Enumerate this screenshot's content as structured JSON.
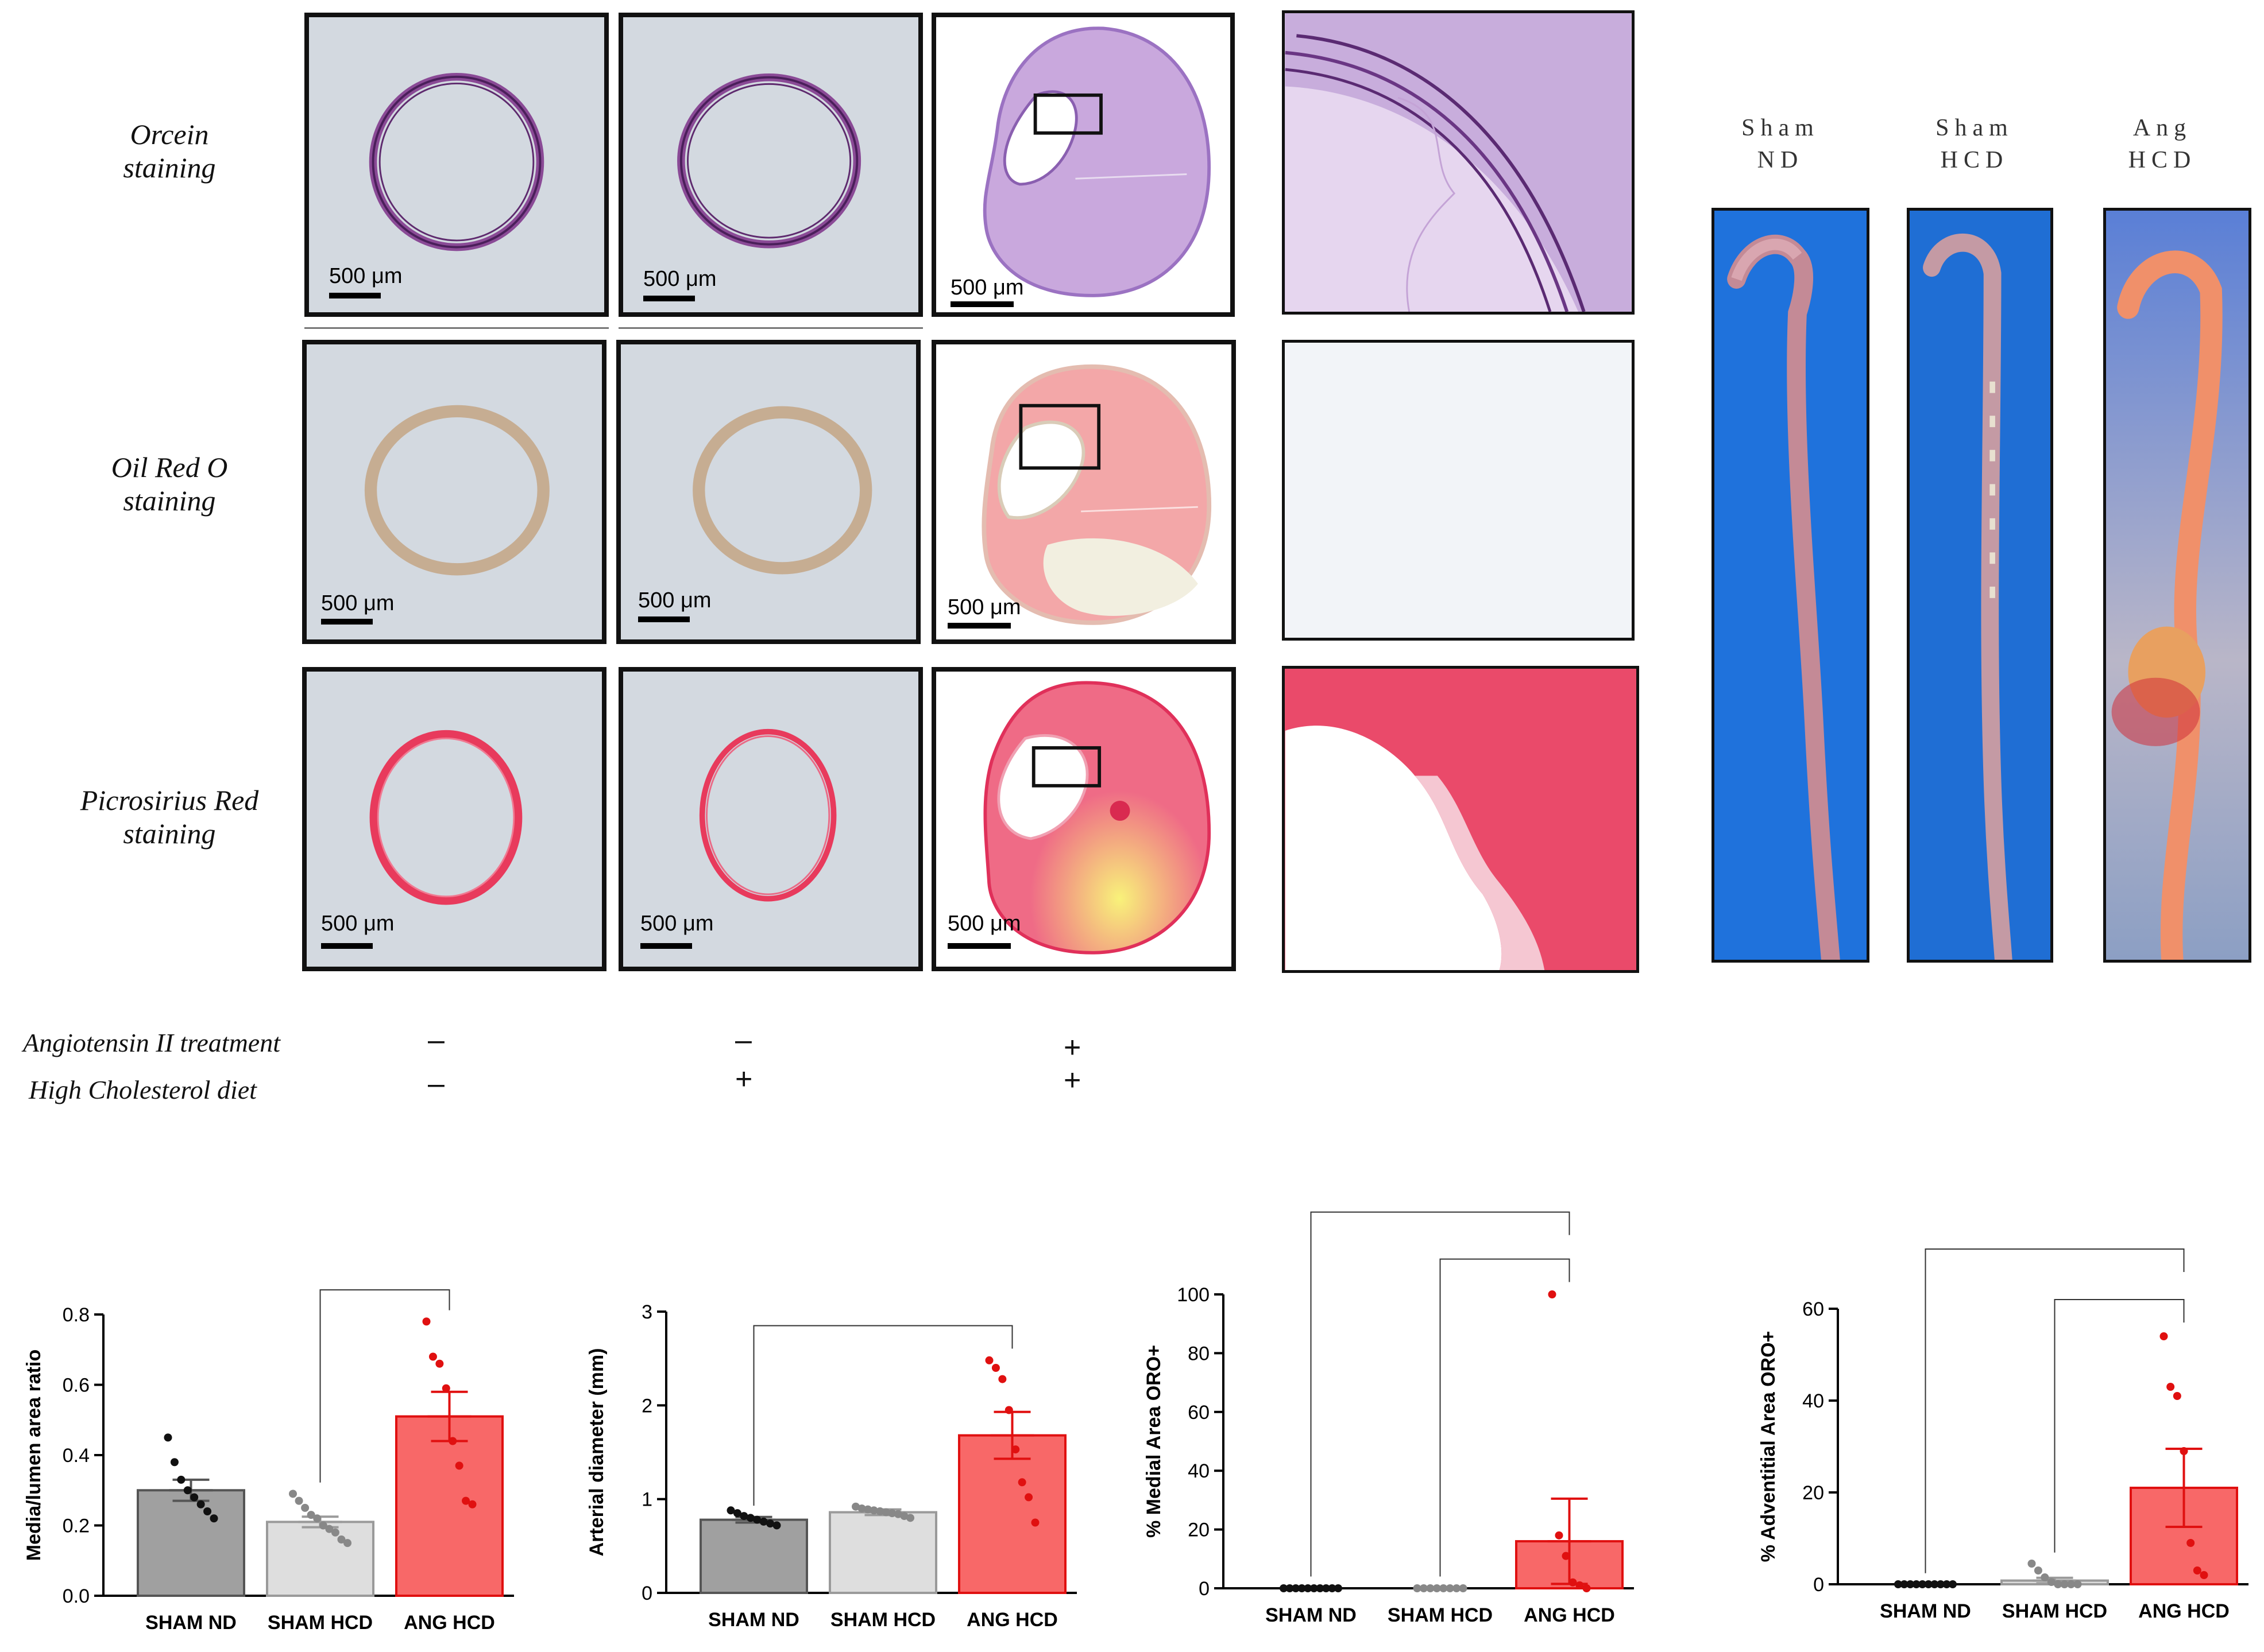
{
  "figure": {
    "row_labels": [
      {
        "line1": "Orcein",
        "line2": "staining"
      },
      {
        "line1": "Oil Red O",
        "line2": "staining"
      },
      {
        "line1": "Picrosirius Red",
        "line2": "staining"
      }
    ],
    "scale_bar": "500 μm",
    "treatments": {
      "angiotensin_label": "Angiotensin II treatment",
      "cholesterol_label": "High Cholesterol diet",
      "angiotensin_signs": [
        "–",
        "–",
        "+"
      ],
      "cholesterol_signs": [
        "–",
        "+",
        "+"
      ]
    },
    "aorta_labels": [
      {
        "line1": "Sham",
        "line2": "ND"
      },
      {
        "line1": "Sham",
        "line2": "HCD"
      },
      {
        "line1": "Ang",
        "line2": "HCD"
      }
    ],
    "colors": {
      "panel_bg": "#d3d9e0",
      "orcein": "#7b3f8a",
      "oil_red": "#c9b39a",
      "picrosirius": "#e8375a",
      "photo_bg": "#1f6fd8",
      "bar_sham_nd": "#a0a0a0",
      "bar_sham_hcd": "#dedede",
      "bar_ang_hcd": "#f86868",
      "point_ang": "#e01010"
    }
  },
  "chart_data": [
    {
      "type": "bar",
      "title": "",
      "xlabel": "",
      "ylabel": "Media/lumen area ratio",
      "categories": [
        "SHAM ND",
        "SHAM HCD",
        "ANG HCD"
      ],
      "values": [
        0.3,
        0.21,
        0.51
      ],
      "errors": [
        0.03,
        0.015,
        0.07
      ],
      "points": [
        [
          0.45,
          0.38,
          0.33,
          0.3,
          0.28,
          0.26,
          0.24,
          0.22
        ],
        [
          0.29,
          0.27,
          0.25,
          0.23,
          0.22,
          0.2,
          0.19,
          0.18,
          0.16,
          0.15
        ],
        [
          0.78,
          0.68,
          0.66,
          0.59,
          0.44,
          0.37,
          0.27,
          0.26
        ]
      ],
      "ylim": [
        0,
        0.8
      ],
      "yticks": [
        0.0,
        0.2,
        0.4,
        0.6,
        0.8
      ],
      "ytick_labels": [
        "0.0",
        "0.2",
        "0.4",
        "0.6",
        "0.8"
      ],
      "brackets": [
        [
          1,
          2,
          0.87
        ]
      ]
    },
    {
      "type": "bar",
      "title": "",
      "xlabel": "",
      "ylabel": "Arterial diameter (mm)",
      "categories": [
        "SHAM ND",
        "SHAM HCD",
        "ANG HCD"
      ],
      "values": [
        0.78,
        0.86,
        1.68
      ],
      "errors": [
        0.03,
        0.03,
        0.25
      ],
      "points": [
        [
          0.88,
          0.85,
          0.82,
          0.8,
          0.78,
          0.76,
          0.74,
          0.72
        ],
        [
          0.92,
          0.9,
          0.89,
          0.88,
          0.87,
          0.86,
          0.85,
          0.84,
          0.82,
          0.8
        ],
        [
          2.48,
          2.4,
          2.28,
          1.95,
          1.53,
          1.18,
          1.02,
          0.75
        ]
      ],
      "ylim": [
        0,
        3
      ],
      "yticks": [
        0,
        1,
        2,
        3
      ],
      "ytick_labels": [
        "0",
        "1",
        "2",
        "3"
      ],
      "brackets": [
        [
          0,
          2,
          2.85
        ]
      ]
    },
    {
      "type": "bar",
      "title": "",
      "xlabel": "",
      "ylabel": "% Medial Area ORO+",
      "categories": [
        "SHAM ND",
        "SHAM HCD",
        "ANG HCD"
      ],
      "values": [
        0,
        0,
        16
      ],
      "errors": [
        0,
        0,
        14.5
      ],
      "points": [
        [
          0,
          0,
          0,
          0,
          0,
          0,
          0,
          0,
          0,
          0
        ],
        [
          0,
          0,
          0,
          0,
          0,
          0,
          0,
          0
        ],
        [
          100,
          18,
          11,
          2,
          1,
          0
        ]
      ],
      "ylim": [
        0,
        100
      ],
      "yticks": [
        0,
        20,
        40,
        60,
        80,
        100
      ],
      "ytick_labels": [
        "0",
        "20",
        "40",
        "60",
        "80",
        "100"
      ],
      "brackets": [
        [
          0,
          2,
          128
        ],
        [
          1,
          2,
          112
        ]
      ]
    },
    {
      "type": "bar",
      "title": "",
      "xlabel": "",
      "ylabel": "% Adventitial Area ORO+",
      "categories": [
        "SHAM ND",
        "SHAM HCD",
        "ANG HCD"
      ],
      "values": [
        0,
        0.8,
        21
      ],
      "errors": [
        0,
        0.6,
        8.5
      ],
      "points": [
        [
          0,
          0,
          0,
          0,
          0,
          0,
          0,
          0,
          0,
          0
        ],
        [
          4.5,
          3,
          1.5,
          0.5,
          0,
          0,
          0,
          0
        ],
        [
          54,
          43,
          41,
          29,
          9,
          3,
          2
        ]
      ],
      "ylim": [
        0,
        60
      ],
      "yticks": [
        0,
        20,
        40,
        60
      ],
      "ytick_labels": [
        "0",
        "20",
        "40",
        "60"
      ],
      "brackets": [
        [
          0,
          2,
          73
        ],
        [
          1,
          2,
          62
        ]
      ]
    }
  ]
}
